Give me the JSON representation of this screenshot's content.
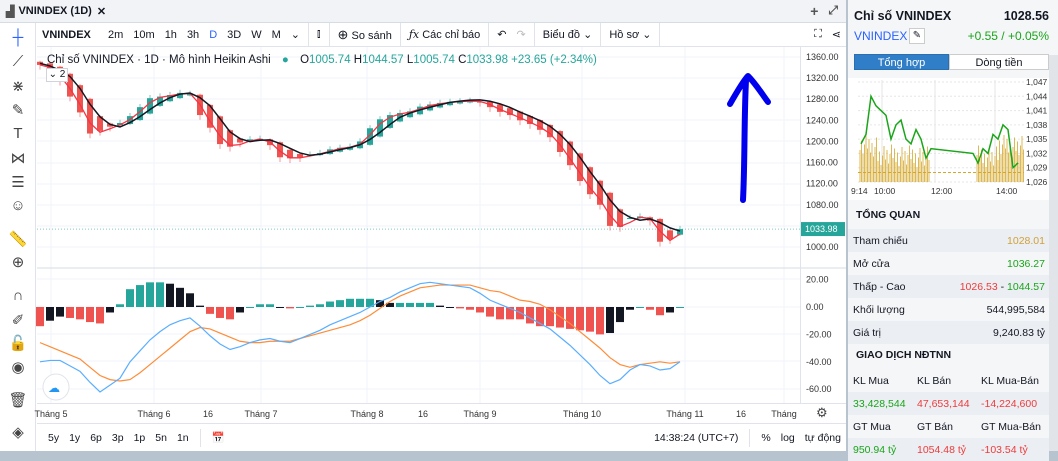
{
  "window": {
    "tab_title": "VNINDEX (1D)",
    "close": "✕",
    "add": "+",
    "expand": "⤢"
  },
  "toolbar": {
    "symbol": "VNINDEX",
    "intervals": [
      "2m",
      "10m",
      "1h",
      "3h",
      "D",
      "3D",
      "W",
      "M"
    ],
    "active_interval": "D",
    "compare": "So sánh",
    "indicators": "Các chỉ báo",
    "chart_type": "Biểu đồ",
    "profile": "Hồ sơ"
  },
  "legend": {
    "title": "Chỉ số VNINDEX · 1D · Mô hình Heikin Ashi",
    "o_label": "O",
    "o": "1005.74",
    "h_label": "H",
    "h": "1044.57",
    "l_label": "L",
    "l": "1005.74",
    "c_label": "C",
    "c": "1033.98",
    "change": "+23.65 (+2.34%)",
    "collapse": "⌄ 2"
  },
  "colors": {
    "up": "#26a69a",
    "down": "#ef5350",
    "ma_fast": "#f23645",
    "ma_slow": "#131722",
    "macd": "#5aaeff",
    "signal": "#ff8c38",
    "accent": "#2962ff",
    "annotation": "#0000ee"
  },
  "chart_data": {
    "type": "candlestick",
    "style": "Heikin Ashi",
    "price_ticks": [
      "1360.00",
      "1320.00",
      "1280.00",
      "1240.00",
      "1200.00",
      "1160.00",
      "1120.00",
      "1080.00",
      "1000.00"
    ],
    "last_price": "1033.98",
    "ylim": [
      980,
      1370
    ],
    "closes": [
      1345,
      1335,
      1315,
      1285,
      1255,
      1215,
      1220,
      1228,
      1235,
      1248,
      1265,
      1282,
      1285,
      1288,
      1292,
      1290,
      1250,
      1226,
      1195,
      1190,
      1198,
      1204,
      1205,
      1193,
      1170,
      1168,
      1170,
      1175,
      1178,
      1185,
      1188,
      1190,
      1200,
      1225,
      1242,
      1250,
      1254,
      1257,
      1266,
      1270,
      1273,
      1275,
      1276,
      1277,
      1275,
      1265,
      1256,
      1250,
      1240,
      1233,
      1222,
      1208,
      1180,
      1155,
      1125,
      1100,
      1080,
      1040,
      1038,
      1055,
      1058,
      1050,
      1010,
      1015,
      1034
    ],
    "macd_ticks": [
      "20.00",
      "0.00",
      "-20.00",
      "-40.00",
      "-60.00"
    ],
    "macd": [
      -40,
      -39,
      -39,
      -43,
      -47,
      -55,
      -62,
      -57,
      -52,
      -40,
      -32,
      -24,
      -18,
      -13,
      -10,
      -8,
      -14,
      -21,
      -27,
      -31,
      -29,
      -26,
      -24,
      -23,
      -25,
      -26,
      -23,
      -20,
      -17,
      -13,
      -10,
      -7,
      -4,
      0,
      4,
      7,
      11,
      14,
      17,
      18,
      17,
      16,
      15,
      14,
      10,
      5,
      2,
      -1,
      -4,
      -8,
      -12,
      -16,
      -22,
      -28,
      -35,
      -42,
      -50,
      -56,
      -53,
      -46,
      -42,
      -43,
      -46,
      -45,
      -40
    ],
    "signal": [
      -26,
      -29,
      -32,
      -35,
      -38,
      -44,
      -50,
      -53,
      -54,
      -53,
      -48,
      -42,
      -36,
      -30,
      -24,
      -18,
      -15,
      -16,
      -19,
      -22,
      -25,
      -26,
      -26,
      -25,
      -25,
      -25,
      -23,
      -21,
      -19,
      -17,
      -15,
      -13,
      -10,
      -6,
      -1,
      4,
      8,
      11,
      14,
      15,
      16,
      16,
      16,
      16,
      14,
      12,
      11,
      8,
      5,
      4,
      2,
      -2,
      -7,
      -12,
      -18,
      -24,
      -30,
      -37,
      -42,
      -44,
      -42,
      -41,
      -40,
      -41,
      -40
    ],
    "x_ticks": [
      "Tháng 5",
      "Tháng 6",
      "16",
      "Tháng 7",
      "Tháng 8",
      "16",
      "Tháng 9",
      "Tháng 10",
      "Tháng 11",
      "16",
      "Tháng"
    ]
  },
  "bottom": {
    "ranges": [
      "5y",
      "1y",
      "6p",
      "3p",
      "1p",
      "5n",
      "1n"
    ],
    "time": "14:38:24 (UTC+7)",
    "percent": "%",
    "log": "log",
    "auto": "tự động"
  },
  "panel": {
    "title": "Chỉ số VNINDEX",
    "price": "1028.56",
    "symbol": "VNINDEX",
    "change": "+0.55 / +0.05%",
    "tabs": [
      "Tổng hợp",
      "Dòng tiền"
    ],
    "active_tab": "Tổng hợp",
    "mini_y": [
      "1,047",
      "1,044",
      "1,041",
      "1,038",
      "1,035",
      "1,032",
      "1,029",
      "1,026"
    ],
    "mini_x": [
      "9:14",
      "10:00",
      "12:00",
      "14:00"
    ],
    "mini_prices": [
      1034,
      1036,
      1044,
      1042,
      1041,
      1040,
      1035,
      1038,
      1039,
      1035,
      1034,
      1037,
      1035,
      1031,
      1033,
      1032,
      1030,
      1033,
      1032,
      1036,
      1035,
      1038,
      1037,
      1029,
      1030
    ],
    "overview_title": "TỔNG QUAN",
    "overview": [
      {
        "label": "Tham chiếu",
        "value": "1028.01",
        "color": "#d1a13b"
      },
      {
        "label": "Mở cửa",
        "value": "1036.27",
        "color": "#1aa51a"
      },
      {
        "label": "Thấp - Cao",
        "low": "1026.53",
        "sep": " - ",
        "high": "1044.57"
      },
      {
        "label": "Khối lượng",
        "value": "544,995,584",
        "color": "#131722"
      },
      {
        "label": "Giá trị",
        "value": "9,240.83 tỷ",
        "color": "#131722"
      }
    ],
    "foreign_title": "GIAO DỊCH NĐTNN",
    "foreign_headers1": [
      "KL Mua",
      "KL Bán",
      "KL Mua-Bán"
    ],
    "foreign_values1": [
      "33,428,544",
      "47,653,144",
      "-14,224,600"
    ],
    "foreign_headers2": [
      "GT Mua",
      "GT Bán",
      "GT Mua-Bán"
    ],
    "foreign_values2": [
      "950.94 tỷ",
      "1054.48 tỷ",
      "-103.54 tỷ"
    ]
  }
}
